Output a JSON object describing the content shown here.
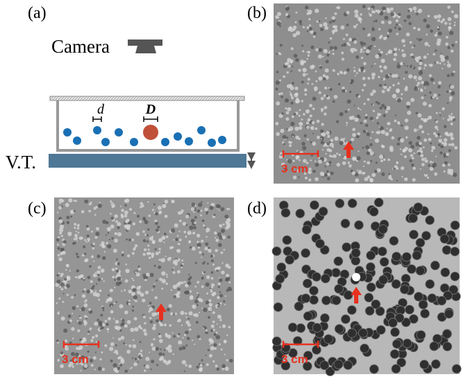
{
  "panels": [
    {
      "label": "(a)",
      "camera": "Camera",
      "small_diameter": "d",
      "large_diameter": "D",
      "table": "V.T."
    },
    {
      "label": "(b)",
      "scale": "3 cm"
    },
    {
      "label": "(c)",
      "scale": "3 cm"
    },
    {
      "label": "(d)",
      "scale": "3 cm"
    }
  ]
}
